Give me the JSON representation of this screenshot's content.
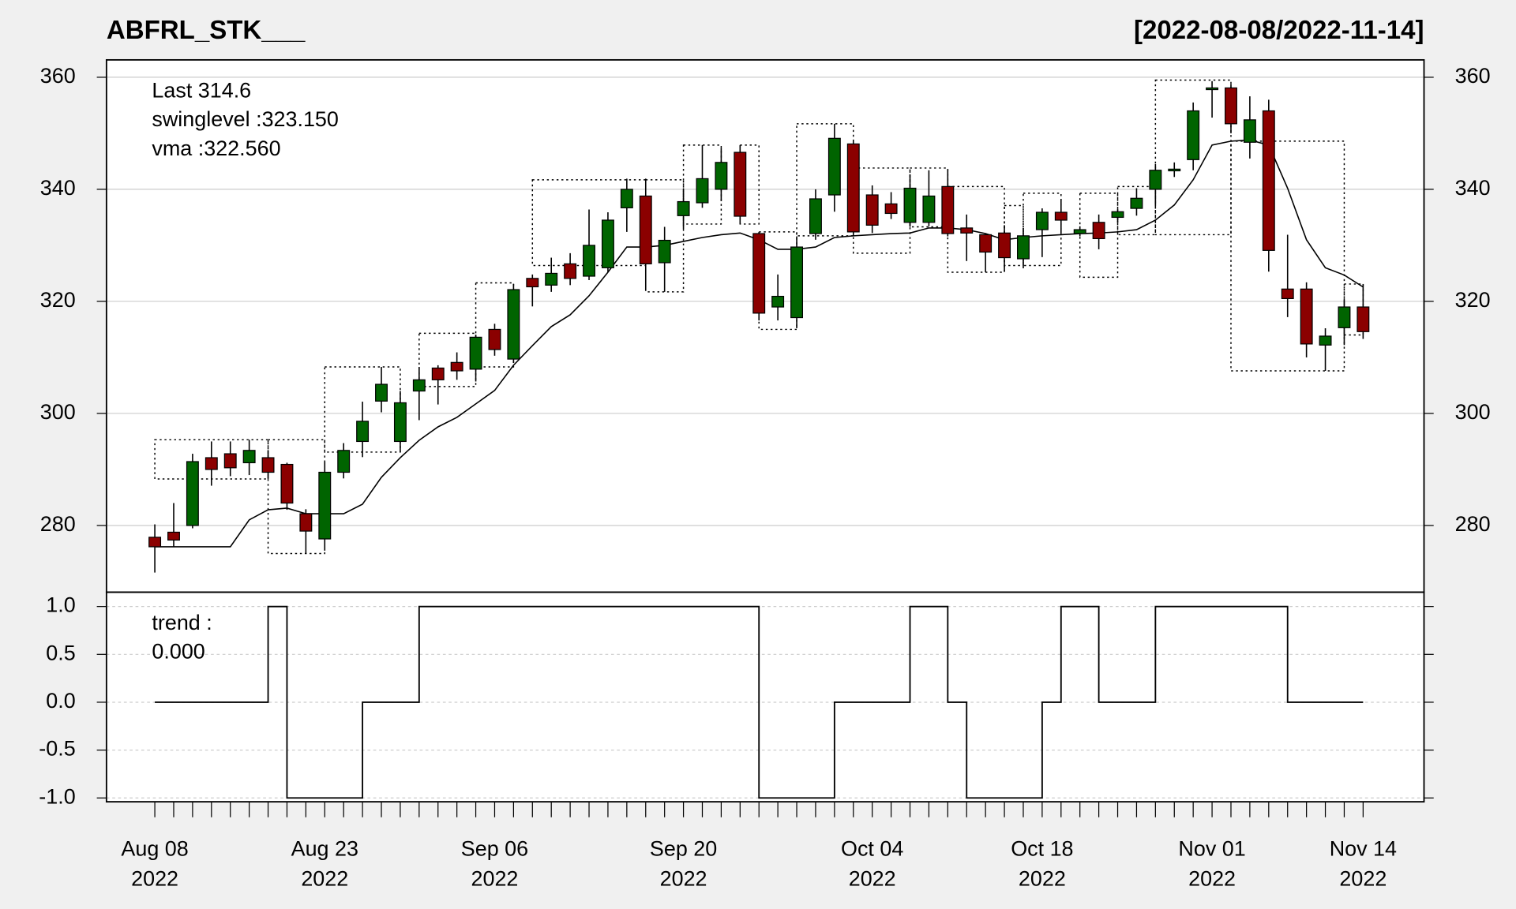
{
  "chart_data": [
    {
      "type": "candlestick",
      "title": "ABFRL_STK___",
      "date_range": "[2022-08-08/2022-11-14]",
      "categories": [
        "2022-08-08",
        "2022-08-10",
        "2022-08-11",
        "2022-08-12",
        "2022-08-16",
        "2022-08-17",
        "2022-08-18",
        "2022-08-19",
        "2022-08-22",
        "2022-08-23",
        "2022-08-24",
        "2022-08-25",
        "2022-08-26",
        "2022-08-29",
        "2022-08-30",
        "2022-09-01",
        "2022-09-02",
        "2022-09-05",
        "2022-09-06",
        "2022-09-07",
        "2022-09-08",
        "2022-09-09",
        "2022-09-12",
        "2022-09-13",
        "2022-09-14",
        "2022-09-15",
        "2022-09-16",
        "2022-09-19",
        "2022-09-20",
        "2022-09-21",
        "2022-09-22",
        "2022-09-23",
        "2022-09-26",
        "2022-09-27",
        "2022-09-28",
        "2022-09-29",
        "2022-09-30",
        "2022-10-03",
        "2022-10-04",
        "2022-10-06",
        "2022-10-07",
        "2022-10-10",
        "2022-10-11",
        "2022-10-12",
        "2022-10-13",
        "2022-10-14",
        "2022-10-17",
        "2022-10-18",
        "2022-10-19",
        "2022-10-20",
        "2022-10-21",
        "2022-10-24",
        "2022-10-25",
        "2022-10-27",
        "2022-10-28",
        "2022-10-31",
        "2022-11-01",
        "2022-11-02",
        "2022-11-03",
        "2022-11-04",
        "2022-11-07",
        "2022-11-09",
        "2022-11-10",
        "2022-11-11",
        "2022-11-14"
      ],
      "open": [
        277.9,
        278.8,
        280,
        292.1,
        292.8,
        291.2,
        292.1,
        290.9,
        282.1,
        277.6,
        289.5,
        295.0,
        302.2,
        295.0,
        304.0,
        308.1,
        309.1,
        307.9,
        315.0,
        309.7,
        324.1,
        322.9,
        326.7,
        324.5,
        326.0,
        336.7,
        338.8,
        326.9,
        335.3,
        337.6,
        340.0,
        346.6,
        332.1,
        319.0,
        317.1,
        332.1,
        339.0,
        348.1,
        339.0,
        337.4,
        334.1,
        334.1,
        340.5,
        333.1,
        331.9,
        332.2,
        327.6,
        332.8,
        335.9,
        332.1,
        334.1,
        335.0,
        336.6,
        340.0,
        343.3,
        345.3,
        357.8,
        358.1,
        348.4,
        354.0,
        322.2,
        322.2,
        312.2,
        315.3,
        319.0
      ],
      "high": [
        280.2,
        284.0,
        292.8,
        295.0,
        295.0,
        295.3,
        293.4,
        291.2,
        282.9,
        291.4,
        294.7,
        302.1,
        308.3,
        304.0,
        308.3,
        308.6,
        310.9,
        314.0,
        316.0,
        323.1,
        324.8,
        327.8,
        328.6,
        336.4,
        335.9,
        341.9,
        341.9,
        333.3,
        340.0,
        347.9,
        347.4,
        347.9,
        332.4,
        324.8,
        331.6,
        340.0,
        351.7,
        348.8,
        340.7,
        339.5,
        342.6,
        343.4,
        343.6,
        335.5,
        332.1,
        333.6,
        333.1,
        336.6,
        338.3,
        333.4,
        335.5,
        336.4,
        340.2,
        344.5,
        344.8,
        355.5,
        359.3,
        358.8,
        356.6,
        356.0,
        331.9,
        323.4,
        315.2,
        320.3,
        323.1
      ],
      "low": [
        271.6,
        276.2,
        279.5,
        287.1,
        288.8,
        289.0,
        288.3,
        282.8,
        275.0,
        275.5,
        288.4,
        292.2,
        300.2,
        293.1,
        298.8,
        301.6,
        306.0,
        305.7,
        310.3,
        309.0,
        319.1,
        321.7,
        322.9,
        323.8,
        325.2,
        332.4,
        321.9,
        321.7,
        332.9,
        336.7,
        337.9,
        333.8,
        316.6,
        316.6,
        315.2,
        331.0,
        336.0,
        331.7,
        332.2,
        334.7,
        333.3,
        333.4,
        331.6,
        327.2,
        325.2,
        325.3,
        325.9,
        327.9,
        332.2,
        331.6,
        329.3,
        334.1,
        335.3,
        337.1,
        342.2,
        343.4,
        352.8,
        350.0,
        345.5,
        325.3,
        317.2,
        310.0,
        307.6,
        312.2,
        313.3
      ],
      "close": [
        276.2,
        277.4,
        291.4,
        290.0,
        290.3,
        293.4,
        289.5,
        284.0,
        279.0,
        289.5,
        293.4,
        298.6,
        305.2,
        301.9,
        306.0,
        306.0,
        307.6,
        313.6,
        311.4,
        322.1,
        322.6,
        325.0,
        324.1,
        330.0,
        334.5,
        340.0,
        326.7,
        330.9,
        337.8,
        341.9,
        344.8,
        335.2,
        317.9,
        320.9,
        329.7,
        338.3,
        349.1,
        332.4,
        333.6,
        335.7,
        340.2,
        338.8,
        332.1,
        332.2,
        328.8,
        327.8,
        331.7,
        335.9,
        334.5,
        332.8,
        331.2,
        336.0,
        338.4,
        343.4,
        343.6,
        354.0,
        358.1,
        351.7,
        352.4,
        329.1,
        320.5,
        312.4,
        313.8,
        319.0,
        314.6
      ],
      "up_color": "#006400",
      "down_color": "#8b0000",
      "overlays": [
        {
          "values": [
            276.2,
            276.2,
            276.2,
            276.2,
            276.2,
            281.0,
            282.8,
            283.1,
            282.1,
            282.1,
            282.1,
            283.8,
            288.6,
            292.1,
            295.2,
            297.6,
            299.3,
            301.7,
            304.1,
            308.6,
            312.1,
            315.5,
            317.6,
            321.0,
            325.2,
            329.7,
            329.7,
            330.0,
            330.7,
            331.4,
            331.9,
            332.2,
            331.0,
            329.3,
            329.3,
            329.7,
            331.4,
            331.7,
            331.9,
            332.1,
            332.2,
            333.1,
            333.1,
            332.8,
            332.1,
            331.0,
            331.4,
            331.7,
            331.9,
            332.1,
            332.2,
            332.4,
            332.8,
            334.5,
            337.2,
            341.7,
            347.9,
            348.6,
            348.8,
            347.9,
            340.2,
            331.0,
            326.0,
            324.7,
            322.56
          ],
          "color": "#000000"
        }
      ],
      "swing_boxes": [
        {
          "from": "2022-08-08",
          "to": "2022-08-18",
          "low": 288.3,
          "high": 295.3
        },
        {
          "from": "2022-08-18",
          "to": "2022-08-23",
          "low": 275.0,
          "high": 295.3
        },
        {
          "from": "2022-08-23",
          "to": "2022-08-29",
          "low": 293.1,
          "high": 308.3
        },
        {
          "from": "2022-08-30",
          "to": "2022-09-05",
          "low": 304.8,
          "high": 314.3
        },
        {
          "from": "2022-09-05",
          "to": "2022-09-07",
          "low": 308.3,
          "high": 323.3
        },
        {
          "from": "2022-09-08",
          "to": "2022-09-16",
          "low": 326.4,
          "high": 341.7
        },
        {
          "from": "2022-09-16",
          "to": "2022-09-20",
          "low": 321.7,
          "high": 341.7
        },
        {
          "from": "2022-09-20",
          "to": "2022-09-22",
          "low": 333.8,
          "high": 347.9
        },
        {
          "from": "2022-09-23",
          "to": "2022-09-26",
          "low": 333.8,
          "high": 347.9
        },
        {
          "from": "2022-09-26",
          "to": "2022-09-28",
          "low": 315.0,
          "high": 332.4
        },
        {
          "from": "2022-09-28",
          "to": "2022-10-03",
          "low": 331.7,
          "high": 351.7
        },
        {
          "from": "2022-10-03",
          "to": "2022-10-07",
          "low": 328.6,
          "high": 343.8
        },
        {
          "from": "2022-10-07",
          "to": "2022-10-11",
          "low": 333.3,
          "high": 343.8
        },
        {
          "from": "2022-10-11",
          "to": "2022-10-14",
          "low": 325.2,
          "high": 340.5
        },
        {
          "from": "2022-10-14",
          "to": "2022-10-17",
          "low": 326.4,
          "high": 337.1
        },
        {
          "from": "2022-10-17",
          "to": "2022-10-19",
          "low": 326.4,
          "high": 339.3
        },
        {
          "from": "2022-10-20",
          "to": "2022-10-24",
          "low": 324.3,
          "high": 339.3
        },
        {
          "from": "2022-10-24",
          "to": "2022-10-27",
          "low": 331.9,
          "high": 340.5
        },
        {
          "from": "2022-10-27",
          "to": "2022-11-02",
          "low": 331.9,
          "high": 359.5
        },
        {
          "from": "2022-11-02",
          "to": "2022-11-11",
          "low": 307.6,
          "high": 348.6
        },
        {
          "from": "2022-11-11",
          "to": "2022-11-14",
          "low": 314.0,
          "high": 323.1
        }
      ],
      "legend": [
        {
          "text": "Last 314.6",
          "color": "#8b0000"
        },
        {
          "text": "swinglevel :323.150",
          "color": "#000000"
        },
        {
          "text": "vma :322.560",
          "color": "#000000"
        }
      ],
      "ylim": [
        268.1,
        363.1
      ],
      "yticks": [
        280,
        300,
        320,
        340,
        360
      ],
      "grid": true,
      "xticks": [
        {
          "value": "2022-08-08",
          "label": [
            "Aug 08",
            "2022"
          ]
        },
        {
          "value": "2022-08-23",
          "label": [
            "Aug 23",
            "2022"
          ]
        },
        {
          "value": "2022-09-06",
          "label": [
            "Sep 06",
            "2022"
          ]
        },
        {
          "value": "2022-09-20",
          "label": [
            "Sep 20",
            "2022"
          ]
        },
        {
          "value": "2022-10-04",
          "label": [
            "Oct 04",
            "2022"
          ]
        },
        {
          "value": "2022-10-18",
          "label": [
            "Oct 18",
            "2022"
          ]
        },
        {
          "value": "2022-11-01",
          "label": [
            "Nov 01",
            "2022"
          ]
        },
        {
          "value": "2022-11-14",
          "label": [
            "Nov 14",
            "2022"
          ]
        }
      ]
    },
    {
      "type": "step",
      "values": [
        0,
        0,
        0,
        0,
        0,
        0,
        1,
        -1,
        -1,
        -1,
        -1,
        0,
        0,
        0,
        1,
        1,
        1,
        1,
        1,
        1,
        1,
        1,
        1,
        1,
        1,
        1,
        1,
        1,
        1,
        1,
        1,
        1,
        -1,
        -1,
        -1,
        -1,
        0,
        0,
        0,
        0,
        1,
        1,
        0,
        -1,
        -1,
        -1,
        -1,
        0,
        1,
        1,
        0,
        0,
        0,
        1,
        1,
        1,
        1,
        1,
        1,
        1,
        0,
        0,
        0,
        0,
        0
      ],
      "color": "#000000",
      "legend": [
        {
          "text": "trend :",
          "color": "#000000"
        },
        {
          "text": "0.000",
          "color": "#000000"
        }
      ],
      "ylim": [
        -1.04,
        1.15
      ],
      "yticks": [
        {
          "value": 1,
          "label": "1.0"
        },
        {
          "value": 0.5,
          "label": "0.5"
        },
        {
          "value": 0,
          "label": "0.0"
        },
        {
          "value": -0.5,
          "label": "-0.5"
        },
        {
          "value": -1,
          "label": "-1.0"
        }
      ],
      "grid": true
    }
  ]
}
